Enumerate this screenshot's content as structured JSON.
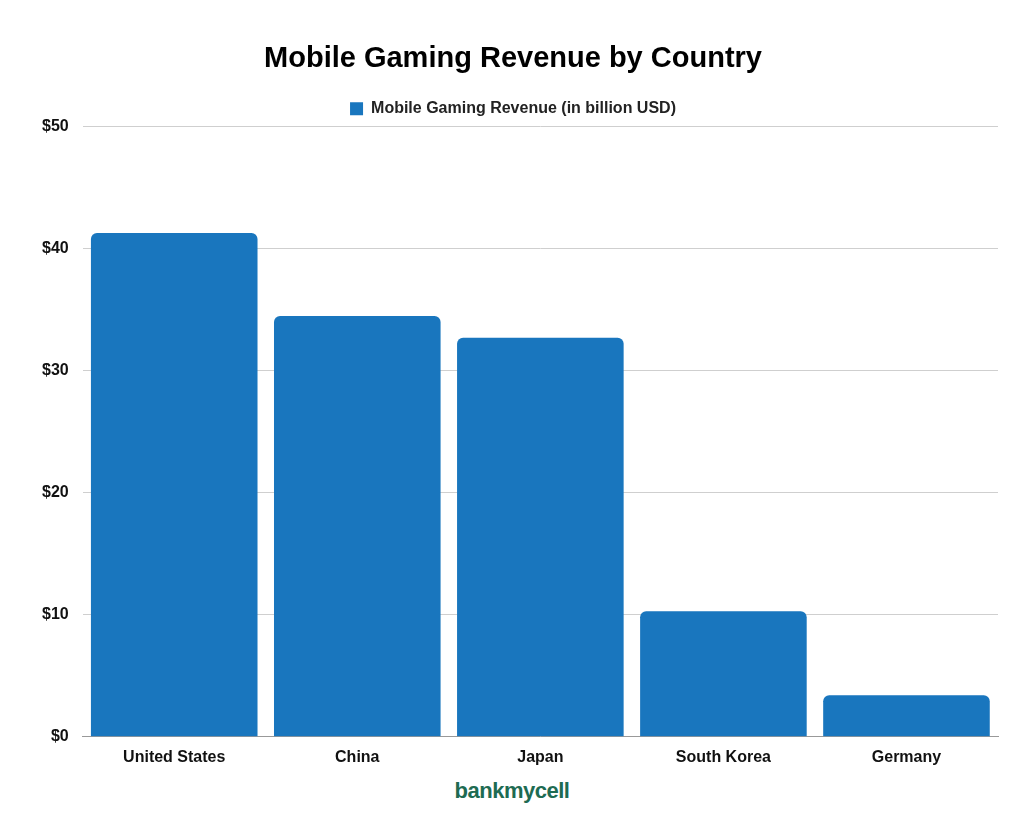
{
  "chart_data": {
    "type": "bar",
    "title": "Mobile Gaming Revenue by Country",
    "categories": [
      "United States",
      "China",
      "Japan",
      "South Korea",
      "Germany"
    ],
    "series": [
      {
        "name": "Mobile Gaming Revenue (in billion USD)",
        "color": "#1976be",
        "values": [
          41.3,
          34.5,
          32.7,
          10.3,
          3.4
        ]
      }
    ],
    "ylim": [
      0,
      50
    ],
    "yticks": [
      {
        "value": 0,
        "label": "$0"
      },
      {
        "value": 10,
        "label": "$10"
      },
      {
        "value": 20,
        "label": "$20"
      },
      {
        "value": 30,
        "label": "$30"
      },
      {
        "value": 40,
        "label": "$40"
      },
      {
        "value": 50,
        "label": "$50"
      }
    ],
    "grid": true,
    "legend": "top",
    "footer": "bankmycell"
  }
}
